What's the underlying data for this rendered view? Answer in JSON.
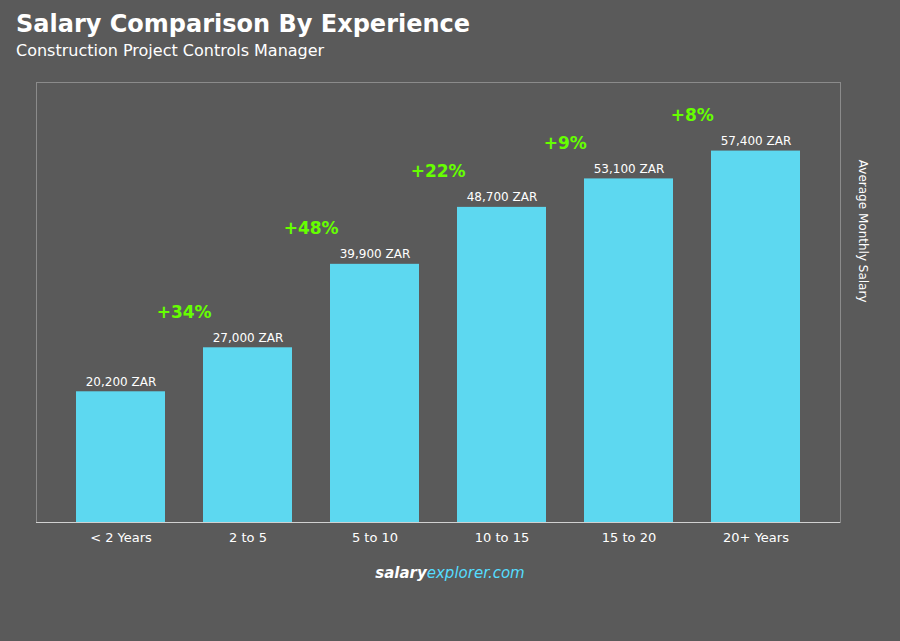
{
  "chart_data": {
    "type": "bar",
    "title": "Salary Comparison By Experience",
    "subtitle": "Construction Project Controls Manager",
    "ylabel": "Average Monthly Salary",
    "footer": [
      "salary",
      "explorer.com"
    ],
    "categories": [
      "< 2 Years",
      "2 to 5",
      "5 to 10",
      "10 to 15",
      "15 to 20",
      "20+ Years"
    ],
    "values": [
      20200,
      27000,
      39900,
      48700,
      53100,
      57400
    ],
    "value_labels": [
      "20,200 ZAR",
      "27,000 ZAR",
      "39,900 ZAR",
      "48,700 ZAR",
      "53,100 ZAR",
      "57,400 ZAR"
    ],
    "data_labels": true,
    "annotations": [
      "+34%",
      "+48%",
      "+22%",
      "+9%",
      "+8%"
    ],
    "color": "#5dd8f0",
    "ylim": [
      0,
      68000
    ],
    "tick_labels": "x"
  }
}
